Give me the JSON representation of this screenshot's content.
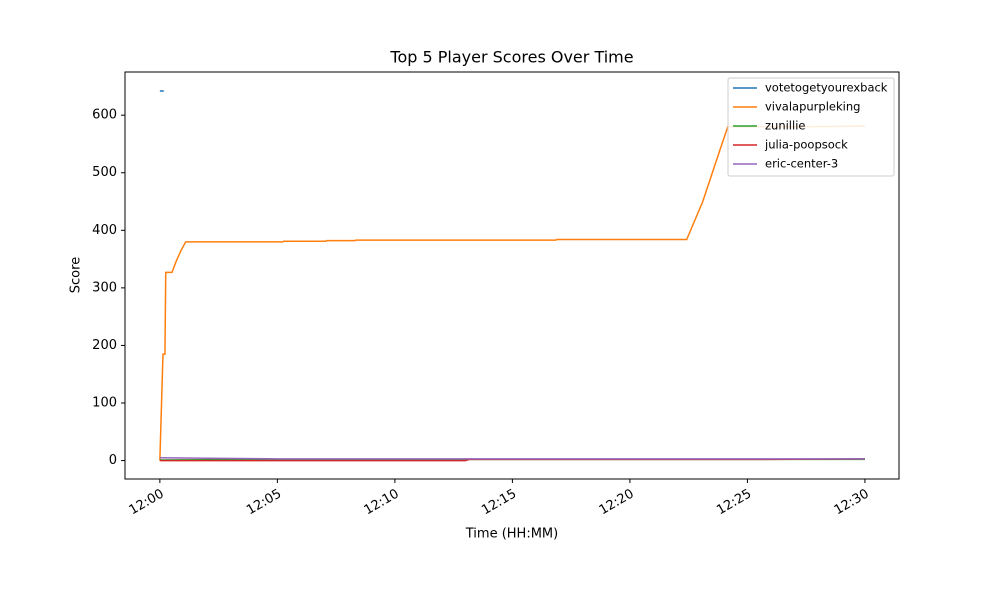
{
  "chart_data": {
    "type": "line",
    "title": "Top 5 Player Scores Over Time",
    "x_label": "Time (HH:MM)",
    "y_label": "Score",
    "xlim": [
      "11:58:31",
      "12:31:27"
    ],
    "xticks": [
      "12:00",
      "12:05",
      "12:10",
      "12:15",
      "12:20",
      "12:25",
      "12:30"
    ],
    "ylim": [
      -32,
      675
    ],
    "yticks": [
      0,
      100,
      200,
      300,
      400,
      500,
      600
    ],
    "grid": false,
    "legend": "upper right",
    "series": [
      {
        "name": "votetogetyourexback",
        "color": "#1f77b4",
        "x": [
          "12:00:00",
          "12:00:10"
        ],
        "values": [
          642,
          642
        ]
      },
      {
        "name": "vivalapurpleking",
        "color": "#ff7f0e",
        "x": [
          "12:00:00",
          "12:00:08",
          "12:00:13",
          "12:00:15",
          "12:00:31",
          "12:00:41",
          "12:00:54",
          "12:01:06",
          "12:05:14",
          "12:05:16",
          "12:07:04",
          "12:07:06",
          "12:08:18",
          "12:08:20",
          "12:16:51",
          "12:16:53",
          "12:22:25",
          "12:23:06",
          "12:23:50",
          "12:24:10",
          "12:27:00",
          "12:30:00"
        ],
        "values": [
          0,
          185,
          185,
          327,
          327,
          345,
          365,
          380,
          380,
          381,
          381,
          382,
          382,
          383,
          383,
          384,
          384,
          450,
          540,
          580,
          580,
          581
        ]
      },
      {
        "name": "zunillie",
        "color": "#2ca02c",
        "x": [
          "12:00:00",
          "12:05:00",
          "12:20:00",
          "12:30:00"
        ],
        "values": [
          1,
          2,
          2,
          2
        ]
      },
      {
        "name": "julia-poopsock",
        "color": "#d62728",
        "x": [
          "12:00:00",
          "12:13:00",
          "12:13:10",
          "12:26:00",
          "12:30:00"
        ],
        "values": [
          0,
          0,
          2,
          2,
          3
        ]
      },
      {
        "name": "eric-center-3",
        "color": "#9467bd",
        "x": [
          "12:00:00",
          "12:02:00",
          "12:05:00",
          "12:30:00"
        ],
        "values": [
          5,
          4,
          3,
          3
        ]
      }
    ]
  }
}
